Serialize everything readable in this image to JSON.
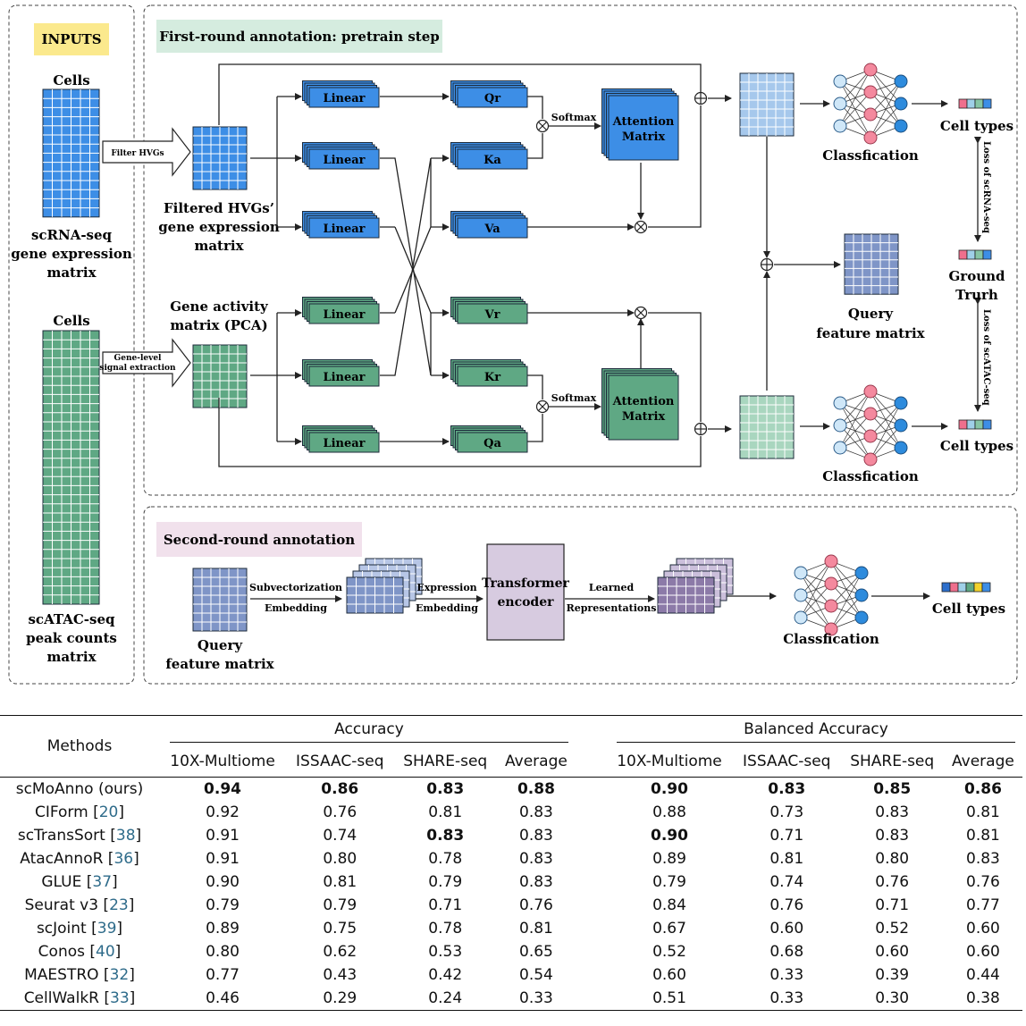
{
  "inputs": {
    "title": "INPUTS",
    "cells_top": "Cells",
    "rna_caption": [
      "scRNA-seq",
      "gene expression",
      "matrix"
    ],
    "cells_bottom": "Cells",
    "atac_caption": [
      "scATAC-seq",
      "peak counts",
      "matrix"
    ]
  },
  "first_round": {
    "title": "First-round annotation: pretrain step",
    "filter_label": "Filter HVGs",
    "gene_level_label": [
      "Gene-level",
      "signal extraction"
    ],
    "filtered_caption": [
      "Filtered HVGs’",
      "gene expression",
      "matrix"
    ],
    "gene_activity_caption": [
      "Gene activity",
      "matrix (PCA)"
    ],
    "linear": "Linear",
    "top_outputs": [
      "Qr",
      "Ka",
      "Va"
    ],
    "bottom_outputs": [
      "Vr",
      "Kr",
      "Qa"
    ],
    "softmax": "Softmax",
    "attention": [
      "Attention",
      "Matrix"
    ],
    "classification": "Classfication",
    "cell_types": "Cell types",
    "ground_truth": [
      "Ground",
      "Trurh"
    ],
    "loss_rna": "Loss of scRNA-seq",
    "loss_atac": "Loss of scATAC-seq",
    "query_caption": [
      "Query",
      "feature matrix"
    ]
  },
  "second_round": {
    "title": "Second-round annotation",
    "query_caption": [
      "Query",
      "feature matrix"
    ],
    "subvec": [
      "Subvectorization",
      "Embedding"
    ],
    "expr": [
      "Expression",
      "Embedding"
    ],
    "transformer": [
      "Transformer",
      "encoder"
    ],
    "learned": [
      "Learned",
      "Representations"
    ],
    "classification": "Classfication",
    "cell_types": "Cell types"
  },
  "colors": {
    "rna": "#3d8ee6",
    "atac": "#5fa884",
    "query": "#7f95c7",
    "purple": "#8c7aa8",
    "inputs_bg": "#fbe98d",
    "first_bg": "#d5ecdf",
    "second_bg": "#f1e1ec"
  },
  "table": {
    "methods_header": "Methods",
    "group_headers": [
      "Accuracy",
      "Balanced Accuracy"
    ],
    "sub_headers": [
      "10X-Multiome",
      "ISSAAC-seq",
      "SHARE-seq",
      "Average",
      "10X-Multiome",
      "ISSAAC-seq",
      "SHARE-seq",
      "Average"
    ],
    "rows": [
      {
        "method": "scMoAnno (ours)",
        "ref": "",
        "values": [
          "0.94",
          "0.86",
          "0.83",
          "0.88",
          "0.90",
          "0.83",
          "0.85",
          "0.86"
        ],
        "bold": [
          true,
          true,
          true,
          true,
          true,
          true,
          true,
          true
        ]
      },
      {
        "method": "CIForm",
        "ref": "20",
        "values": [
          "0.92",
          "0.76",
          "0.81",
          "0.83",
          "0.88",
          "0.73",
          "0.83",
          "0.81"
        ],
        "bold": [
          false,
          false,
          false,
          false,
          false,
          false,
          false,
          false
        ]
      },
      {
        "method": "scTransSort",
        "ref": "38",
        "values": [
          "0.91",
          "0.74",
          "0.83",
          "0.83",
          "0.90",
          "0.71",
          "0.83",
          "0.81"
        ],
        "bold": [
          false,
          false,
          true,
          false,
          true,
          false,
          false,
          false
        ]
      },
      {
        "method": "AtacAnnoR",
        "ref": "36",
        "values": [
          "0.91",
          "0.80",
          "0.78",
          "0.83",
          "0.89",
          "0.81",
          "0.80",
          "0.83"
        ],
        "bold": [
          false,
          false,
          false,
          false,
          false,
          false,
          false,
          false
        ]
      },
      {
        "method": "GLUE",
        "ref": "37",
        "values": [
          "0.90",
          "0.81",
          "0.79",
          "0.83",
          "0.79",
          "0.74",
          "0.76",
          "0.76"
        ],
        "bold": [
          false,
          false,
          false,
          false,
          false,
          false,
          false,
          false
        ]
      },
      {
        "method": "Seurat v3",
        "ref": "23",
        "values": [
          "0.79",
          "0.79",
          "0.71",
          "0.76",
          "0.84",
          "0.76",
          "0.71",
          "0.77"
        ],
        "bold": [
          false,
          false,
          false,
          false,
          false,
          false,
          false,
          false
        ]
      },
      {
        "method": "scJoint",
        "ref": "39",
        "values": [
          "0.89",
          "0.75",
          "0.78",
          "0.81",
          "0.67",
          "0.60",
          "0.52",
          "0.60"
        ],
        "bold": [
          false,
          false,
          false,
          false,
          false,
          false,
          false,
          false
        ]
      },
      {
        "method": "Conos",
        "ref": "40",
        "values": [
          "0.80",
          "0.62",
          "0.53",
          "0.65",
          "0.52",
          "0.68",
          "0.60",
          "0.60"
        ],
        "bold": [
          false,
          false,
          false,
          false,
          false,
          false,
          false,
          false
        ]
      },
      {
        "method": "MAESTRO",
        "ref": "32",
        "values": [
          "0.77",
          "0.43",
          "0.42",
          "0.54",
          "0.60",
          "0.33",
          "0.39",
          "0.44"
        ],
        "bold": [
          false,
          false,
          false,
          false,
          false,
          false,
          false,
          false
        ]
      },
      {
        "method": "CellWalkR",
        "ref": "33",
        "values": [
          "0.46",
          "0.29",
          "0.24",
          "0.33",
          "0.51",
          "0.33",
          "0.30",
          "0.38"
        ],
        "bold": [
          false,
          false,
          false,
          false,
          false,
          false,
          false,
          false
        ]
      }
    ]
  }
}
